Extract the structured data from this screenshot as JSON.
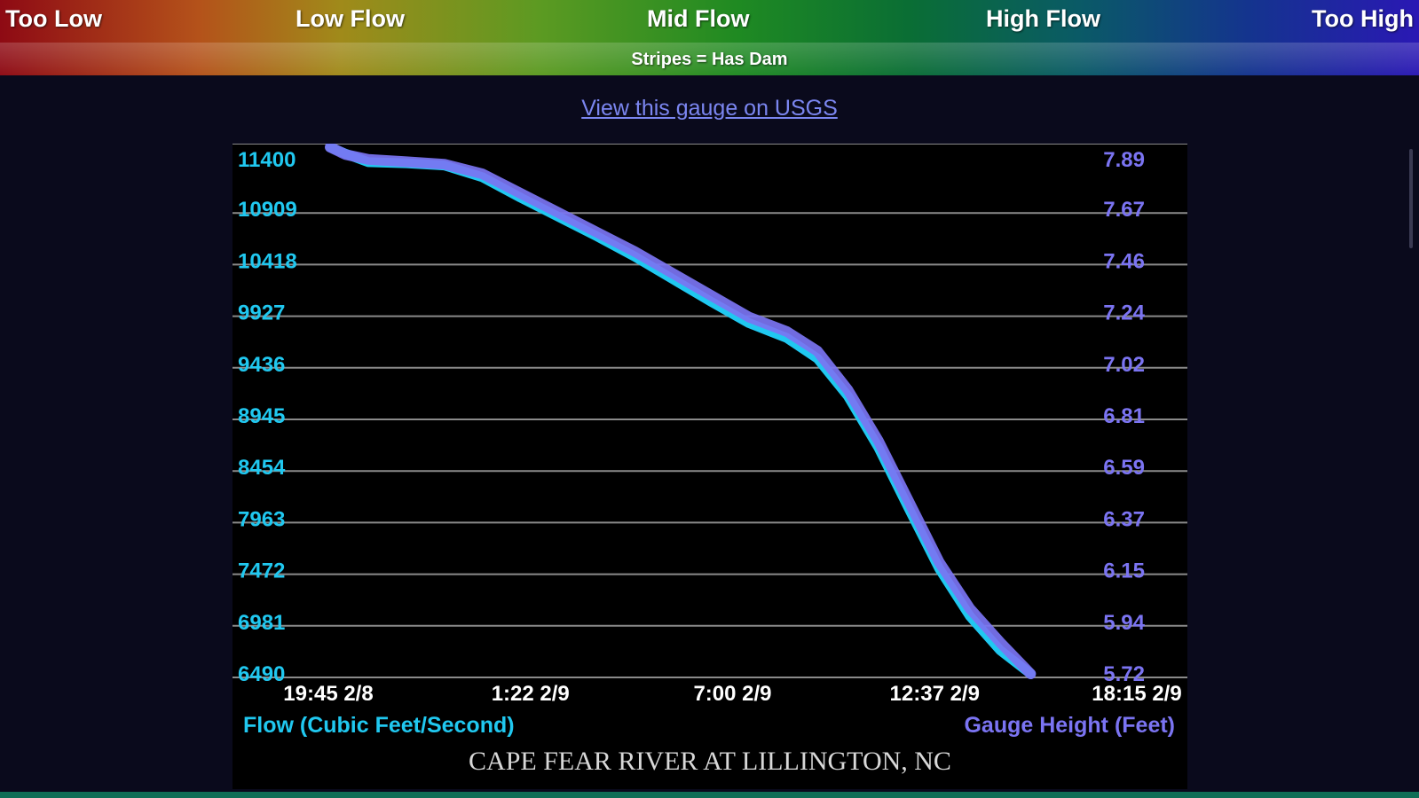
{
  "legend": {
    "labels": [
      "Too Low",
      "Low Flow",
      "Mid Flow",
      "High Flow",
      "Too High"
    ],
    "note": "Stripes = Has Dam"
  },
  "link": {
    "label": "View this gauge on USGS"
  },
  "colors": {
    "flow": "#20c8f0",
    "gauge": "#7b74f2",
    "link": "#7b86f0",
    "title": "#d8d8d8",
    "x_tick": "#ffffff",
    "grid": "#8a8a8a"
  },
  "chart_data": {
    "type": "line",
    "title": "CAPE FEAR RIVER AT LILLINGTON, NC",
    "left_axis_label": "Flow (Cubic Feet/Second)",
    "right_axis_label": "Gauge Height (Feet)",
    "y_left_ticks": [
      "11400",
      "10909",
      "10418",
      "9927",
      "9436",
      "8945",
      "8454",
      "7963",
      "7472",
      "6981",
      "6490"
    ],
    "y_right_ticks": [
      "7.89",
      "7.67",
      "7.46",
      "7.24",
      "7.02",
      "6.81",
      "6.59",
      "6.37",
      "6.15",
      "5.94",
      "5.72"
    ],
    "x_ticks": [
      "19:45 2/8",
      "1:22 2/9",
      "7:00 2/9",
      "12:37 2/9",
      "18:15 2/9"
    ],
    "ylim_left": [
      6490,
      11400
    ],
    "ylim_right": [
      5.72,
      7.89
    ],
    "grid": true,
    "series": [
      {
        "name": "Flow (Cubic Feet/Second)",
        "axis": "left",
        "points": [
          [
            0.0,
            11400
          ],
          [
            0.02,
            11340
          ],
          [
            0.05,
            11260
          ],
          [
            0.1,
            11250
          ],
          [
            0.15,
            11230
          ],
          [
            0.2,
            11120
          ],
          [
            0.25,
            10930
          ],
          [
            0.3,
            10750
          ],
          [
            0.35,
            10570
          ],
          [
            0.4,
            10380
          ],
          [
            0.45,
            10170
          ],
          [
            0.5,
            9960
          ],
          [
            0.55,
            9760
          ],
          [
            0.6,
            9620
          ],
          [
            0.64,
            9430
          ],
          [
            0.68,
            9080
          ],
          [
            0.72,
            8600
          ],
          [
            0.76,
            8030
          ],
          [
            0.8,
            7470
          ],
          [
            0.84,
            7030
          ],
          [
            0.88,
            6710
          ],
          [
            0.92,
            6490
          ]
        ]
      },
      {
        "name": "Gauge Height (Feet)",
        "axis": "right",
        "points": [
          [
            0.0,
            7.89
          ],
          [
            0.02,
            7.86
          ],
          [
            0.05,
            7.84
          ],
          [
            0.1,
            7.83
          ],
          [
            0.15,
            7.82
          ],
          [
            0.2,
            7.78
          ],
          [
            0.25,
            7.7
          ],
          [
            0.3,
            7.62
          ],
          [
            0.35,
            7.54
          ],
          [
            0.4,
            7.46
          ],
          [
            0.45,
            7.37
          ],
          [
            0.5,
            7.28
          ],
          [
            0.55,
            7.19
          ],
          [
            0.6,
            7.13
          ],
          [
            0.64,
            7.05
          ],
          [
            0.68,
            6.89
          ],
          [
            0.72,
            6.68
          ],
          [
            0.76,
            6.43
          ],
          [
            0.8,
            6.18
          ],
          [
            0.84,
            5.99
          ],
          [
            0.88,
            5.85
          ],
          [
            0.92,
            5.72
          ]
        ]
      }
    ]
  }
}
